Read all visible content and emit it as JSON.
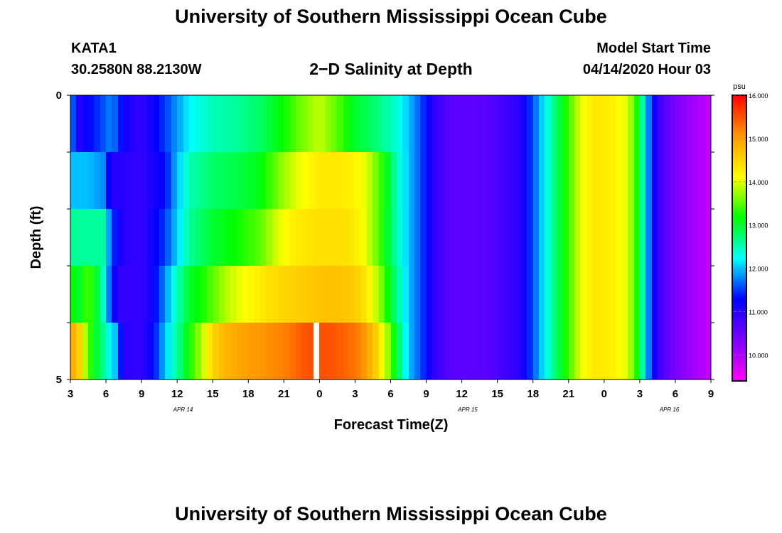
{
  "page": {
    "title": "University of Southern Mississippi Ocean Cube",
    "footer_title": "University of Southern Mississippi Ocean Cube",
    "station": "KATA1",
    "coords": "30.2580N 88.2130W",
    "plot_title": "2−D Salinity at Depth",
    "model_start_label": "Model Start Time",
    "model_start_value": "04/14/2020 Hour 03"
  },
  "colors": {
    "scale": [
      "#ff00ff",
      "#7f00ff",
      "#0000ff",
      "#00ffff",
      "#00ff00",
      "#ffff00",
      "#ff9900",
      "#ff0000"
    ]
  },
  "chart_data": {
    "type": "heatmap",
    "title": "2−D Salinity at Depth",
    "xlabel": "Forecast Time(Z)",
    "ylabel": "Depth (ft)",
    "x_tick_labels": [
      "3",
      "6",
      "9",
      "12",
      "15",
      "18",
      "21",
      "0",
      "3",
      "6",
      "9",
      "12",
      "15",
      "18",
      "21",
      "0",
      "3",
      "6",
      "9"
    ],
    "x_hours": [
      0,
      3,
      6,
      9,
      12,
      15,
      18,
      21,
      24,
      27,
      30,
      33,
      36,
      39,
      42,
      45,
      48,
      51,
      54
    ],
    "date_labels": [
      {
        "label": "APR 14",
        "hour": 9.5
      },
      {
        "label": "APR 15",
        "hour": 33.5
      },
      {
        "label": "APR 16",
        "hour": 50.5
      }
    ],
    "xlim_hours": [
      0,
      54
    ],
    "y_tick_labels": [
      "0",
      "5"
    ],
    "ylim": [
      0,
      5
    ],
    "depth_levels": [
      0,
      1,
      2,
      3,
      4,
      5
    ],
    "colorbar": {
      "unit": "psu",
      "min": 9.4,
      "max": 16.0,
      "tick_labels": [
        "16.000",
        "15.000",
        "14.000",
        "13.000",
        "12.000",
        "11.000",
        "10.000"
      ],
      "tick_values": [
        16,
        15,
        14,
        13,
        12,
        11,
        10
      ]
    },
    "missing_cell": {
      "hour": 20.5,
      "layer": 4
    },
    "salinity_profiles": [
      {
        "name": "0-1 ft",
        "hours": [
          0,
          0.6,
          1.2,
          2.5,
          3.5,
          4.5,
          6,
          8,
          10,
          12,
          14,
          16,
          17,
          18,
          19.5,
          21,
          22.5,
          24,
          25.5,
          26.5,
          27.5,
          28.5,
          29.5,
          30.5,
          32,
          35,
          38,
          39,
          40,
          41,
          42,
          43,
          44,
          45,
          46,
          47,
          48,
          48.7,
          49.5,
          50.5,
          52,
          54
        ],
        "values": [
          12.0,
          11.0,
          11.2,
          11.5,
          11.8,
          11.2,
          10.9,
          11.5,
          12.2,
          12.5,
          12.6,
          12.8,
          13.0,
          13.2,
          13.6,
          13.9,
          13.5,
          13.0,
          12.8,
          12.6,
          12.4,
          12.0,
          11.6,
          11.0,
          10.6,
          10.6,
          11.0,
          11.6,
          12.2,
          12.8,
          13.4,
          14.0,
          14.3,
          14.3,
          14.2,
          14.0,
          13.0,
          11.8,
          10.9,
          10.5,
          10.2,
          9.8
        ]
      },
      {
        "name": "1-2 ft",
        "hours": [
          0,
          1.5,
          2.8,
          3.5,
          4.5,
          6,
          8,
          9,
          10,
          12,
          14,
          16,
          17.5,
          19,
          21,
          23,
          24,
          25,
          26,
          26.5,
          27.5,
          28.5,
          29.5,
          30.5,
          32,
          35,
          38,
          39,
          40,
          41,
          42,
          43,
          44,
          45,
          46,
          47,
          48,
          48.7,
          49.5,
          50.5,
          52,
          54
        ],
        "values": [
          12.0,
          12.0,
          11.8,
          11.0,
          11.0,
          10.9,
          11.3,
          12.0,
          12.5,
          12.8,
          12.9,
          13.1,
          13.6,
          14.0,
          14.3,
          14.3,
          14.2,
          14.0,
          13.5,
          13.2,
          12.5,
          12.0,
          11.6,
          11.0,
          10.6,
          10.6,
          11.0,
          11.6,
          12.2,
          12.8,
          13.4,
          14.0,
          14.3,
          14.3,
          14.2,
          14.0,
          13.0,
          11.8,
          10.9,
          10.5,
          10.2,
          9.8
        ]
      },
      {
        "name": "2-3 ft",
        "hours": [
          0,
          2.8,
          3.5,
          4.5,
          6,
          8,
          10,
          12,
          14,
          16,
          17.5,
          19,
          21,
          23,
          24,
          25,
          26,
          27,
          28.5,
          29.5,
          30.5,
          32,
          35,
          38,
          39,
          40,
          41,
          42,
          43,
          44,
          45,
          46,
          47,
          48,
          48.7,
          49.5,
          50.5,
          52,
          54
        ],
        "values": [
          12.6,
          12.6,
          11.5,
          11.0,
          10.9,
          11.5,
          12.6,
          13.0,
          13.2,
          13.5,
          14.0,
          14.3,
          14.4,
          14.4,
          14.3,
          14.0,
          13.5,
          12.8,
          12.0,
          11.6,
          11.0,
          10.6,
          10.6,
          11.0,
          11.6,
          12.2,
          12.8,
          13.4,
          14.0,
          14.3,
          14.3,
          14.2,
          14.0,
          13.0,
          11.8,
          10.9,
          10.5,
          10.2,
          9.8
        ]
      },
      {
        "name": "3-4 ft",
        "hours": [
          0,
          0.7,
          1.5,
          2.5,
          3.2,
          4,
          5,
          6,
          7,
          8,
          9,
          10,
          11,
          12,
          13,
          14,
          16,
          18,
          20,
          22,
          24,
          25,
          26,
          27,
          28.5,
          29.5,
          30.5,
          32,
          35,
          38,
          39,
          40,
          41,
          42,
          43,
          44,
          45,
          46,
          47,
          48,
          48.7,
          49.5,
          50.5,
          52,
          54
        ],
        "values": [
          13.3,
          13.0,
          13.5,
          12.8,
          11.8,
          10.9,
          10.9,
          10.9,
          11.2,
          11.8,
          12.5,
          13.0,
          13.2,
          13.5,
          13.8,
          14.0,
          14.3,
          14.5,
          14.6,
          14.7,
          14.6,
          14.3,
          13.8,
          13.0,
          12.0,
          11.6,
          11.0,
          10.6,
          10.6,
          11.0,
          11.6,
          12.2,
          12.8,
          13.4,
          14.0,
          14.3,
          14.3,
          14.2,
          14.0,
          13.0,
          11.8,
          10.9,
          10.5,
          10.2,
          9.8
        ]
      },
      {
        "name": "4-5 ft",
        "hours": [
          0,
          0.8,
          1.5,
          2.2,
          3,
          3.8,
          4.5,
          6,
          7,
          8,
          9,
          10,
          11,
          12,
          13,
          15,
          18,
          20,
          22,
          24,
          25,
          25.7,
          26.5,
          27.5,
          28.5,
          29.5,
          30.5,
          32,
          35,
          38,
          39,
          40,
          41,
          42,
          43,
          44,
          45,
          46,
          47,
          48,
          48.7,
          49.5,
          50.5,
          52,
          54
        ],
        "values": [
          15.0,
          14.5,
          13.5,
          13.0,
          12.5,
          12.0,
          11.0,
          10.9,
          11.3,
          12.0,
          12.6,
          13.2,
          13.8,
          14.5,
          14.8,
          15.0,
          15.2,
          15.5,
          15.5,
          15.3,
          15.0,
          14.6,
          14.0,
          13.0,
          12.0,
          11.6,
          11.0,
          10.6,
          10.6,
          11.0,
          11.6,
          12.2,
          12.8,
          13.4,
          14.0,
          14.3,
          14.3,
          14.2,
          14.0,
          13.0,
          11.8,
          10.9,
          10.5,
          10.2,
          9.8
        ]
      }
    ]
  }
}
